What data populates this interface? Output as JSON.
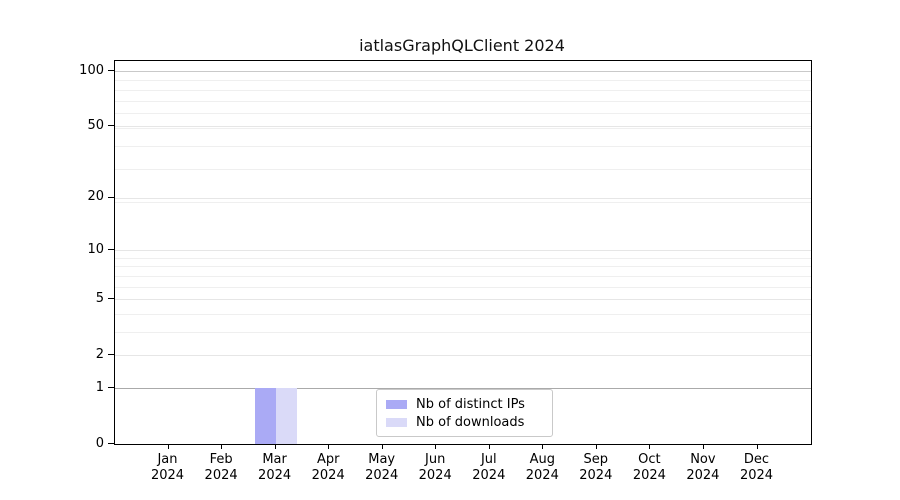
{
  "chart_data": {
    "type": "bar",
    "title": "iatlasGraphQLClient 2024",
    "categories": [
      "Jan",
      "Feb",
      "Mar",
      "Apr",
      "May",
      "Jun",
      "Jul",
      "Aug",
      "Sep",
      "Oct",
      "Nov",
      "Dec"
    ],
    "x_tick_second_line": "2024",
    "series": [
      {
        "name": "Nb of distinct IPs",
        "color": "#aaaaf5",
        "values": [
          0,
          0,
          1,
          0,
          0,
          0,
          0,
          0,
          0,
          0,
          0,
          0
        ]
      },
      {
        "name": "Nb of downloads",
        "color": "#dadaf8",
        "values": [
          0,
          0,
          1,
          0,
          0,
          0,
          0,
          0,
          0,
          0,
          0,
          0
        ]
      }
    ],
    "y_scale": "log1p",
    "y_ticks": [
      0,
      1,
      2,
      5,
      10,
      20,
      50,
      100
    ],
    "ylim": [
      0,
      100
    ],
    "grid": true,
    "legend_position": "lower center",
    "colors": {
      "spine": "#000000",
      "grid_minor": "#efefef",
      "grid_major": "#e6e6e6",
      "grid_dark_overlap": "#aaaaaa",
      "grid_top_decade": "#c9c9c9"
    }
  }
}
